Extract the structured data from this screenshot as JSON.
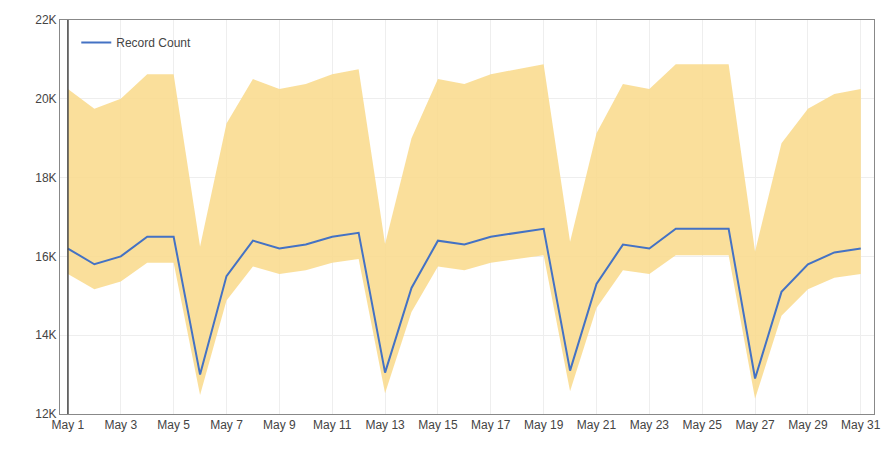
{
  "chart_data": {
    "type": "line",
    "x": [
      0,
      1,
      2,
      3,
      4,
      5,
      6,
      7,
      8,
      9,
      10,
      11,
      12,
      13,
      14,
      15,
      16,
      17,
      18,
      19,
      20,
      21,
      22,
      23,
      24,
      25,
      26,
      27,
      28,
      29,
      30
    ],
    "series": [
      {
        "name": "Record Count",
        "color": "#4472C4",
        "values": [
          16200,
          15800,
          16000,
          16500,
          16500,
          13000,
          15500,
          16400,
          16200,
          16300,
          16500,
          16600,
          13050,
          15200,
          16400,
          16300,
          16500,
          16600,
          16700,
          13100,
          15300,
          16300,
          16200,
          16700,
          16700,
          16700,
          12900,
          15100,
          15800,
          16100,
          16200
        ]
      }
    ],
    "band": {
      "color": "#F9D98A",
      "upper": [
        20250,
        19750,
        20000,
        20625,
        20625,
        16250,
        19375,
        20500,
        20250,
        20375,
        20625,
        20750,
        16312.5,
        19000,
        20500,
        20375,
        20625,
        20750,
        20875,
        16375,
        19125,
        20375,
        20250,
        20875,
        20875,
        20875,
        16125,
        18875,
        19750,
        20125,
        20250
      ],
      "lower": [
        15552,
        15168,
        15360,
        15840,
        15840,
        12480,
        14880,
        15744,
        15552,
        15648,
        15840,
        15936,
        12528,
        14592,
        15744,
        15648,
        15840,
        15936,
        16032,
        12576,
        14688,
        15648,
        15552,
        16032,
        16032,
        16032,
        12384,
        14496,
        15168,
        15456,
        15552
      ]
    },
    "vline": {
      "x": 0,
      "color": "#444444"
    },
    "xlim": [
      -0.3,
      30.5
    ],
    "xticks": [
      {
        "value": 0,
        "label": "May 1"
      },
      {
        "value": 2,
        "label": "May 3"
      },
      {
        "value": 4,
        "label": "May 5"
      },
      {
        "value": 6,
        "label": "May 7"
      },
      {
        "value": 8,
        "label": "May 9"
      },
      {
        "value": 10,
        "label": "May 11"
      },
      {
        "value": 12,
        "label": "May 13"
      },
      {
        "value": 14,
        "label": "May 15"
      },
      {
        "value": 16,
        "label": "May 17"
      },
      {
        "value": 18,
        "label": "May 19"
      },
      {
        "value": 20,
        "label": "May 21"
      },
      {
        "value": 22,
        "label": "May 23"
      },
      {
        "value": 24,
        "label": "May 25"
      },
      {
        "value": 26,
        "label": "May 27"
      },
      {
        "value": 28,
        "label": "May 29"
      },
      {
        "value": 30,
        "label": "May 31"
      }
    ],
    "ylim": [
      12000,
      22000
    ],
    "yticks": [
      {
        "value": 12000,
        "label": "12K"
      },
      {
        "value": 14000,
        "label": "14K"
      },
      {
        "value": 16000,
        "label": "16K"
      },
      {
        "value": 18000,
        "label": "18K"
      },
      {
        "value": 20000,
        "label": "20K"
      },
      {
        "value": 22000,
        "label": "22K"
      }
    ],
    "grid": true,
    "legend": "upper left"
  }
}
